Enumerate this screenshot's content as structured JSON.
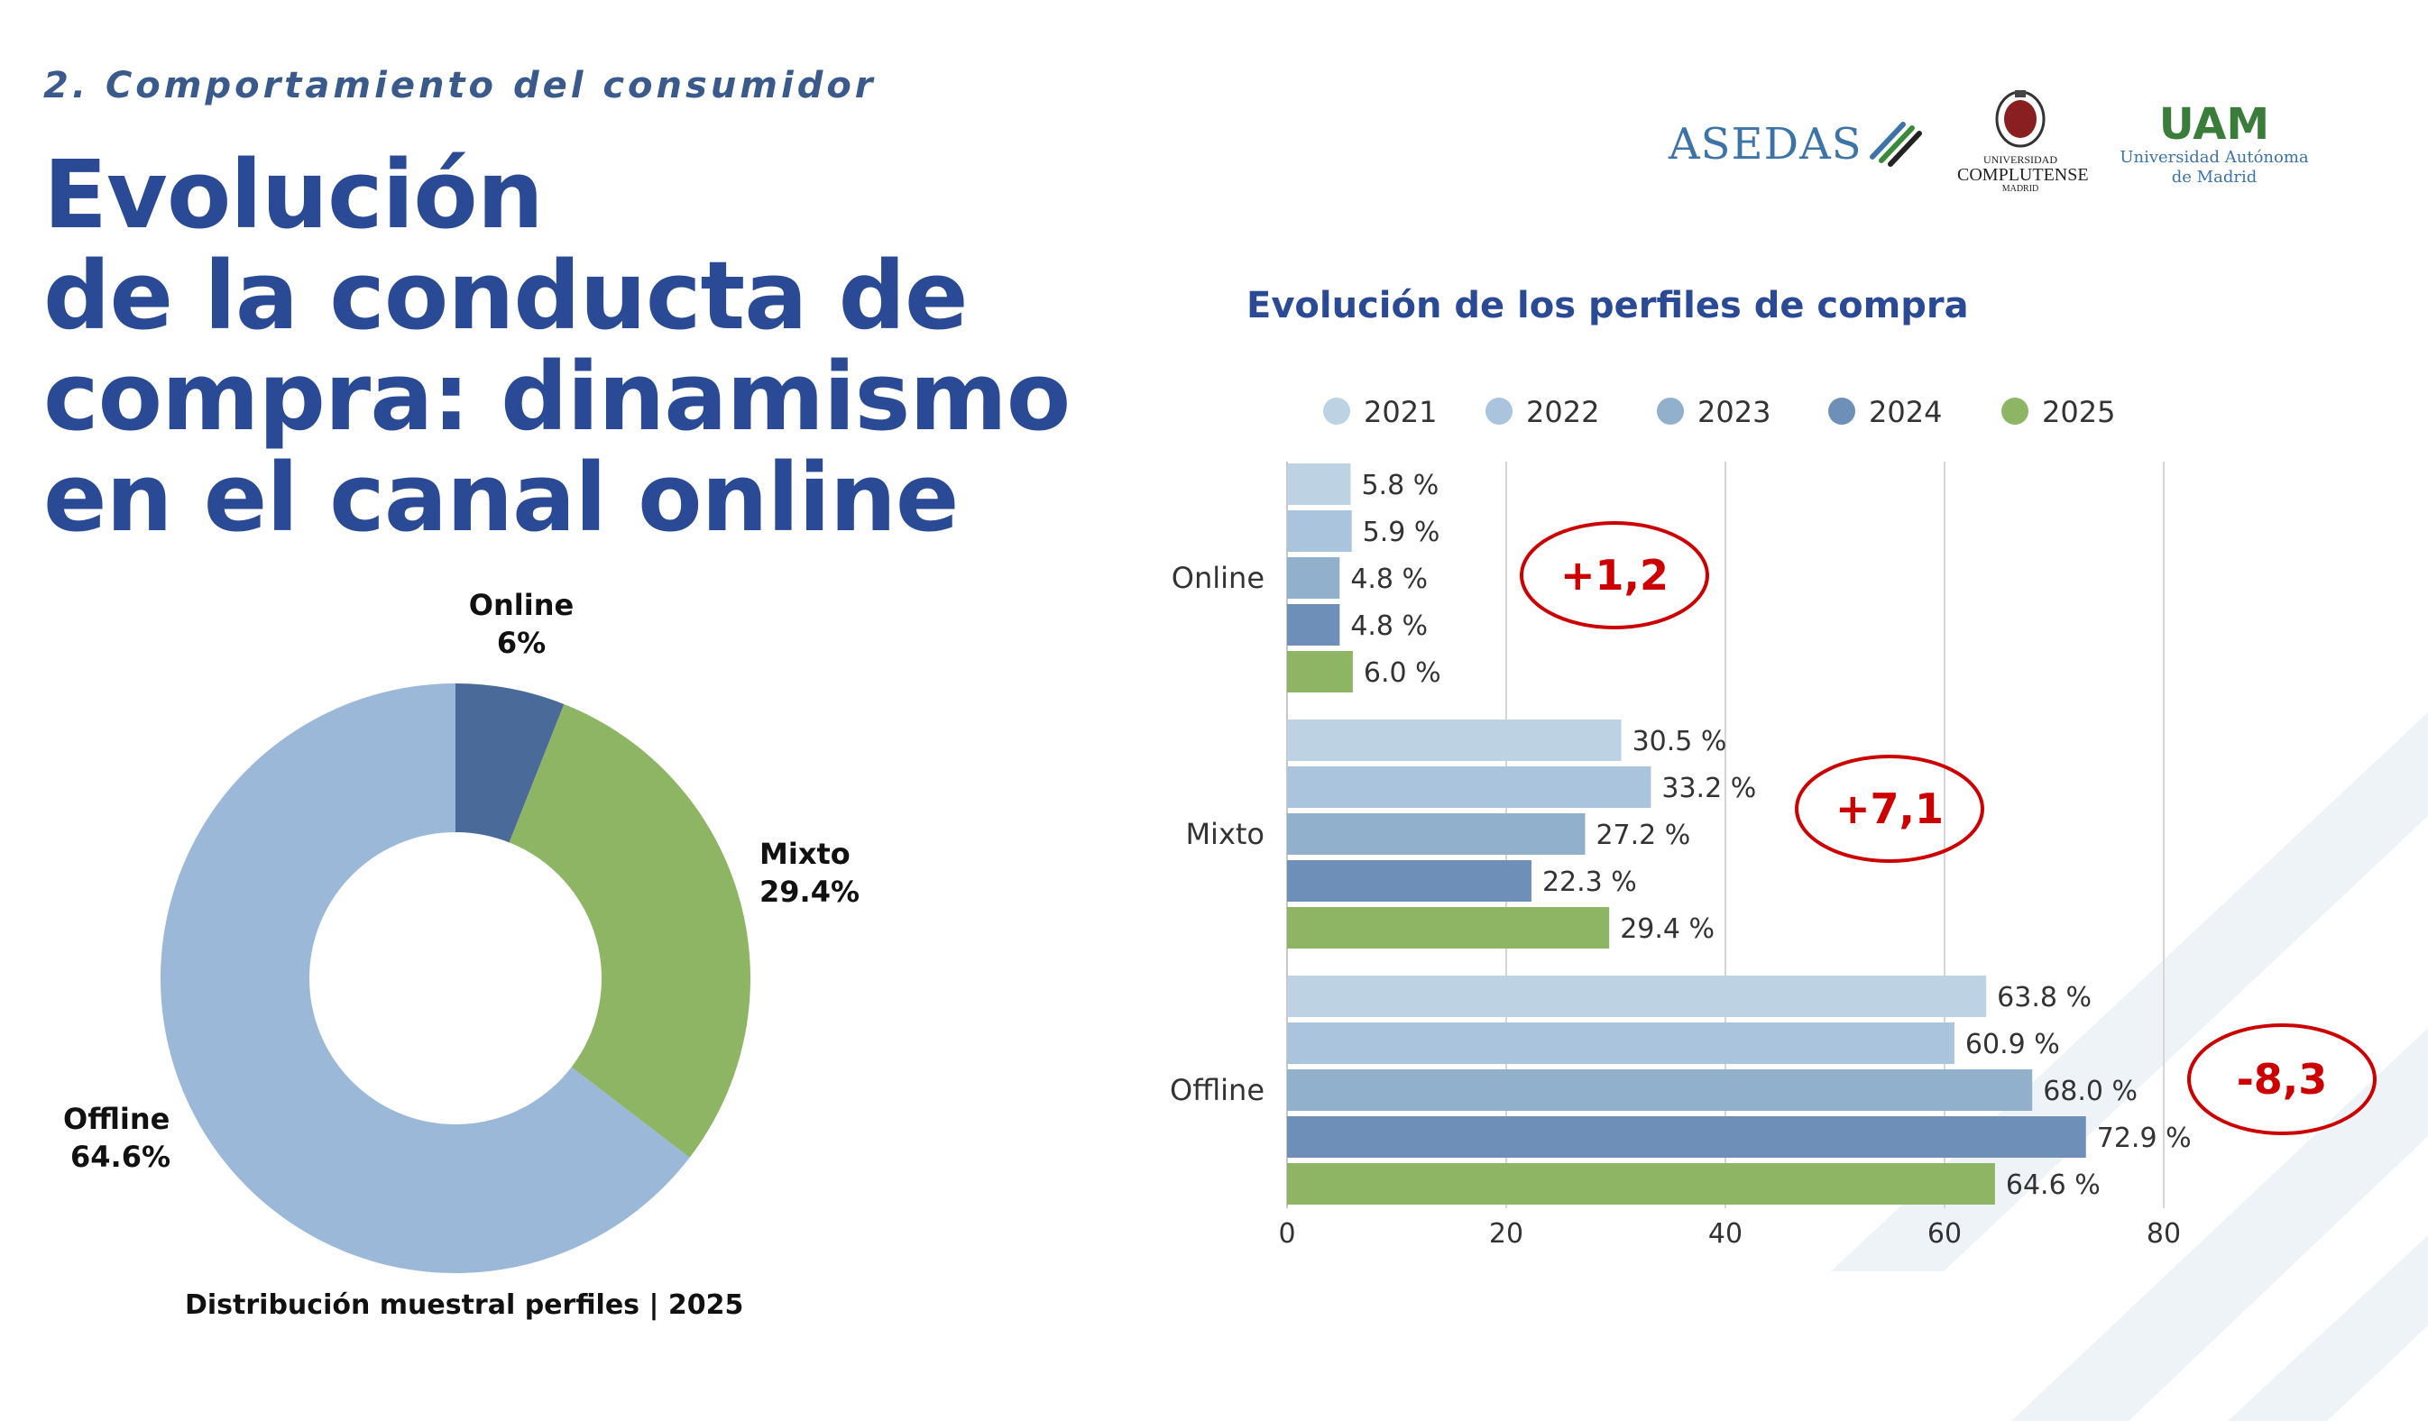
{
  "section_label": "2. Comportamiento del consumidor",
  "headline": [
    "Evolución",
    "de la conducta de",
    "compra: dinamismo",
    "en el canal online"
  ],
  "logos": {
    "asedas": "ASEDAS",
    "ucm": [
      "UNIVERSIDAD",
      "COMPLUTENSE",
      "MADRID"
    ],
    "uam_mark": "UAM",
    "uam": [
      "Universidad Autónoma",
      "de Madrid"
    ]
  },
  "colors": {
    "c2021": "#bdd3e3",
    "c2022": "#a9c4dc",
    "c2023": "#91b0cc",
    "c2024": "#6e8fb8",
    "c2025": "#8db563",
    "online_slice": "#4a6a9a",
    "mixto_slice": "#8db563",
    "offline_slice": "#9bb8d8",
    "annotation": "#cc0000",
    "grid": "#d6d6d6"
  },
  "chart_data": [
    {
      "type": "pie",
      "title": "Distribución muestral perfiles | 2025",
      "labels": [
        "Online",
        "Mixto",
        "Offline"
      ],
      "label_values": [
        "6%",
        "29.4%",
        "64.6%"
      ],
      "values": [
        6.0,
        29.4,
        64.6
      ],
      "donut": true
    },
    {
      "type": "bar",
      "orientation": "horizontal",
      "title": "Evolución de los perfiles de compra",
      "categories": [
        "Online",
        "Mixto",
        "Offline"
      ],
      "legend_position": "top",
      "xlim": [
        0,
        80
      ],
      "xticks": [
        "0",
        "20",
        "40",
        "60",
        "80"
      ],
      "grid": true,
      "series": [
        {
          "name": "2021",
          "values": [
            5.8,
            30.5,
            63.8
          ],
          "labels": [
            "5.8 %",
            "30.5 %",
            "63.8 %"
          ]
        },
        {
          "name": "2022",
          "values": [
            5.9,
            33.2,
            60.9
          ],
          "labels": [
            "5.9 %",
            "33.2 %",
            "60.9 %"
          ]
        },
        {
          "name": "2023",
          "values": [
            4.8,
            27.2,
            68.0
          ],
          "labels": [
            "4.8 %",
            "27.2 %",
            "68.0 %"
          ]
        },
        {
          "name": "2024",
          "values": [
            4.8,
            22.3,
            72.9
          ],
          "labels": [
            "4.8 %",
            "22.3 %",
            "72.9 %"
          ]
        },
        {
          "name": "2025",
          "values": [
            6.0,
            29.4,
            64.6
          ],
          "labels": [
            "6.0 %",
            "29.4 %",
            "64.6 %"
          ]
        }
      ],
      "annotations": [
        "+1,2",
        "+7,1",
        "-8,3"
      ]
    }
  ]
}
